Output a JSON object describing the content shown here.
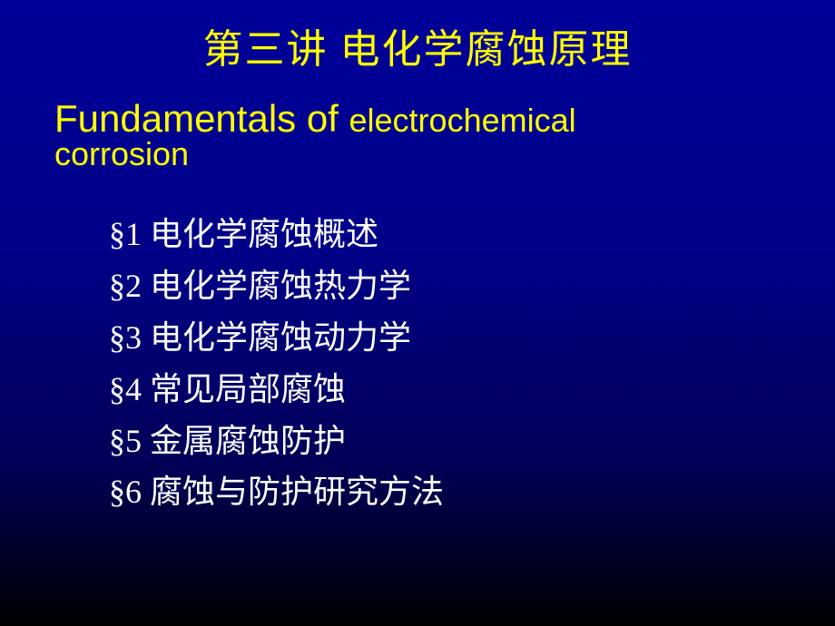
{
  "title": "第三讲   电化学腐蚀原理",
  "subtitle": {
    "part1": "Fundamentals of ",
    "part2": "electrochemical",
    "part3": "corrosion"
  },
  "sections": [
    "§1  电化学腐蚀概述",
    "§2  电化学腐蚀热力学",
    "§3  电化学腐蚀动力学",
    "§4  常见局部腐蚀",
    "§5  金属腐蚀防护",
    "§6  腐蚀与防护研究方法"
  ],
  "colors": {
    "title_color": "#ffff00",
    "text_color": "#ffffff",
    "bg_top": "#000099",
    "bg_bottom": "#000000"
  },
  "typography": {
    "title_fontsize": 44,
    "subtitle_large_fontsize": 42,
    "subtitle_small_fontsize": 36,
    "section_fontsize": 36
  }
}
